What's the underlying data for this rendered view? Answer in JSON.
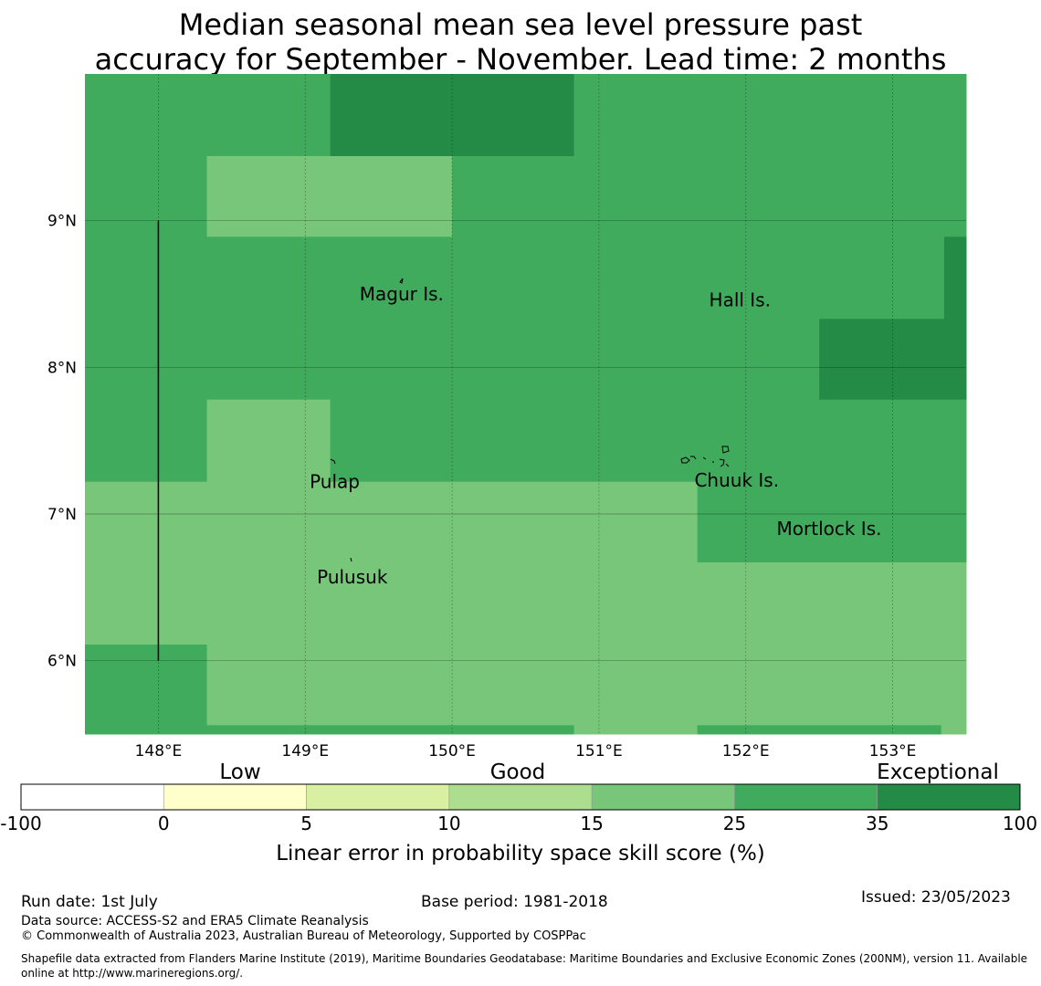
{
  "title": {
    "line1": "Median seasonal mean sea level pressure past",
    "line2": "accuracy for September - November. Lead time: 2 months"
  },
  "map": {
    "lat_range": [
      5.5,
      10.0
    ],
    "lon_range": [
      147.5,
      153.5
    ],
    "lat_ticks": [
      {
        "value": 9,
        "label": "9°N"
      },
      {
        "value": 8,
        "label": "8°N"
      },
      {
        "value": 7,
        "label": "7°N"
      },
      {
        "value": 6,
        "label": "6°N"
      }
    ],
    "lon_ticks": [
      {
        "value": 148,
        "label": "148°E"
      },
      {
        "value": 149,
        "label": "149°E"
      },
      {
        "value": 150,
        "label": "150°E"
      },
      {
        "value": 151,
        "label": "151°E"
      },
      {
        "value": 152,
        "label": "152°E"
      },
      {
        "value": 153,
        "label": "153°E"
      }
    ],
    "colors": {
      "c35_100": "#238b45",
      "c25_35": "#41ab5d",
      "c15_25": "#78c679"
    },
    "cells": [
      {
        "lon": [
          147.5,
          148.33
        ],
        "lat": [
          9.44,
          10.0
        ],
        "bin": "c25_35"
      },
      {
        "lon": [
          148.33,
          149.17
        ],
        "lat": [
          9.44,
          10.0
        ],
        "bin": "c25_35"
      },
      {
        "lon": [
          149.17,
          150.83
        ],
        "lat": [
          9.44,
          10.0
        ],
        "bin": "c35_100"
      },
      {
        "lon": [
          150.83,
          153.5
        ],
        "lat": [
          9.44,
          10.0
        ],
        "bin": "c25_35"
      },
      {
        "lon": [
          147.5,
          148.33
        ],
        "lat": [
          8.89,
          9.44
        ],
        "bin": "c25_35"
      },
      {
        "lon": [
          148.33,
          150.0
        ],
        "lat": [
          8.89,
          9.44
        ],
        "bin": "c15_25"
      },
      {
        "lon": [
          150.0,
          153.5
        ],
        "lat": [
          8.89,
          9.44
        ],
        "bin": "c25_35"
      },
      {
        "lon": [
          147.5,
          153.35
        ],
        "lat": [
          8.33,
          8.89
        ],
        "bin": "c25_35"
      },
      {
        "lon": [
          153.35,
          153.5
        ],
        "lat": [
          8.33,
          8.89
        ],
        "bin": "c35_100"
      },
      {
        "lon": [
          147.5,
          152.5
        ],
        "lat": [
          7.78,
          8.33
        ],
        "bin": "c25_35"
      },
      {
        "lon": [
          152.5,
          153.5
        ],
        "lat": [
          7.78,
          8.33
        ],
        "bin": "c35_100"
      },
      {
        "lon": [
          147.5,
          148.33
        ],
        "lat": [
          7.22,
          7.78
        ],
        "bin": "c25_35"
      },
      {
        "lon": [
          148.33,
          149.17
        ],
        "lat": [
          7.22,
          7.78
        ],
        "bin": "c15_25"
      },
      {
        "lon": [
          149.17,
          153.5
        ],
        "lat": [
          7.22,
          7.78
        ],
        "bin": "c25_35"
      },
      {
        "lon": [
          147.5,
          151.67
        ],
        "lat": [
          6.67,
          7.22
        ],
        "bin": "c15_25"
      },
      {
        "lon": [
          151.67,
          153.5
        ],
        "lat": [
          6.67,
          7.22
        ],
        "bin": "c25_35"
      },
      {
        "lon": [
          147.5,
          148.33
        ],
        "lat": [
          6.11,
          6.67
        ],
        "bin": "c15_25"
      },
      {
        "lon": [
          148.33,
          153.5
        ],
        "lat": [
          6.11,
          6.67
        ],
        "bin": "c15_25"
      },
      {
        "lon": [
          147.5,
          148.33
        ],
        "lat": [
          5.5,
          6.11
        ],
        "bin": "c25_35"
      },
      {
        "lon": [
          148.33,
          153.5
        ],
        "lat": [
          5.56,
          6.11
        ],
        "bin": "c15_25"
      },
      {
        "lon": [
          148.33,
          150.83
        ],
        "lat": [
          5.5,
          5.56
        ],
        "bin": "c25_35"
      },
      {
        "lon": [
          150.83,
          151.67
        ],
        "lat": [
          5.5,
          5.56
        ],
        "bin": "c15_25"
      },
      {
        "lon": [
          151.67,
          153.33
        ],
        "lat": [
          5.5,
          5.56
        ],
        "bin": "c25_35"
      },
      {
        "lon": [
          153.33,
          153.5
        ],
        "lat": [
          5.5,
          5.56
        ],
        "bin": "c15_25"
      }
    ],
    "places": [
      {
        "name": "Magur Is.",
        "lon": 149.37,
        "lat": 8.5
      },
      {
        "name": "Hall Is.",
        "lon": 151.75,
        "lat": 8.46
      },
      {
        "name": "Pulap",
        "lon": 149.03,
        "lat": 7.22
      },
      {
        "name": "Chuuk Is.",
        "lon": 151.65,
        "lat": 7.23
      },
      {
        "name": "Mortlock Is.",
        "lon": 152.21,
        "lat": 6.9
      },
      {
        "name": "Pulusuk",
        "lon": 149.08,
        "lat": 6.57
      }
    ],
    "boundary_line": {
      "lon": 148.0,
      "lat": [
        6.0,
        9.0
      ]
    }
  },
  "colorbar": {
    "categories": [
      {
        "label": "Low"
      },
      {
        "label": "Good"
      },
      {
        "label": "Exceptional"
      }
    ],
    "ticks": [
      "-100",
      "0",
      "5",
      "10",
      "15",
      "25",
      "35",
      "100"
    ],
    "colors": [
      "#ffffff",
      "#ffffcc",
      "#d9f0a3",
      "#addd8e",
      "#78c679",
      "#41ab5d",
      "#238b45"
    ],
    "label": "Linear error in probability space skill score (%)"
  },
  "footer": {
    "run_date": "Run date: 1st July",
    "base_period": "Base period: 1981-2018",
    "issued": "Issued: 23/05/2023",
    "data_source": "Data source: ACCESS-S2 and ERA5 Climate Reanalysis",
    "copyright": "© Commonwealth of Australia 2023, Australian Bureau of Meteorology, Supported by COSPPac",
    "shapefile": "Shapefile data extracted from Flanders Marine Institute (2019), Maritime Boundaries Geodatabase: Maritime Boundaries and Exclusive Economic Zones (200NM), version 11. Available online at http://www.marineregions.org/."
  }
}
